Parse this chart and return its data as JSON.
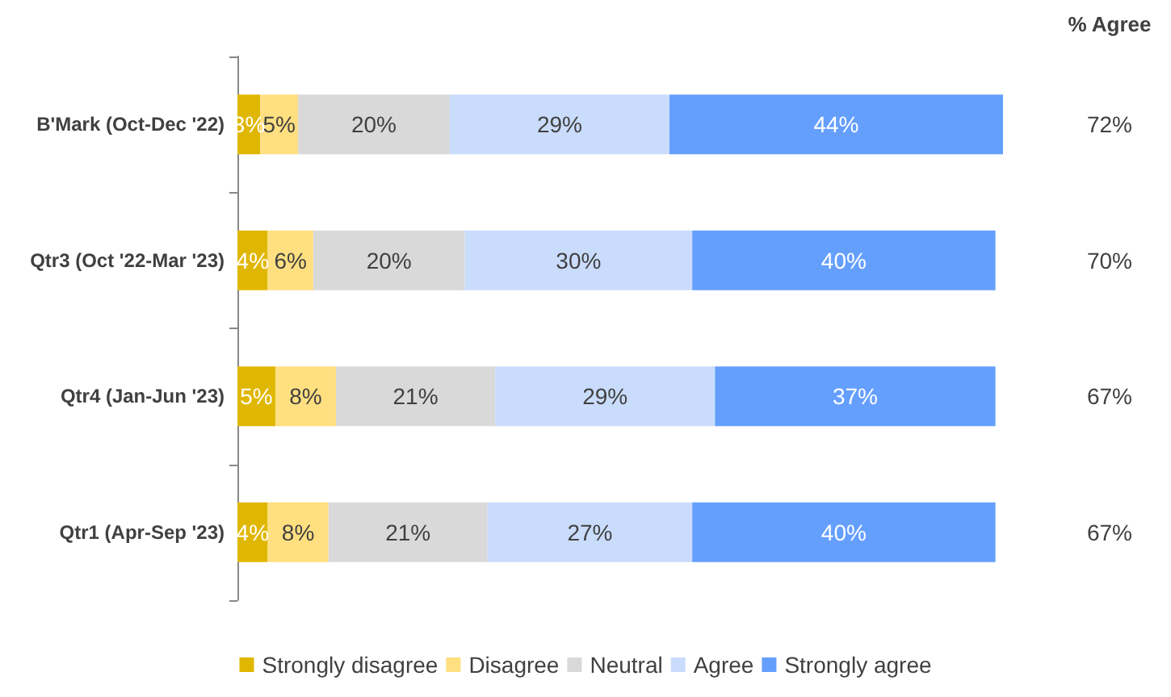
{
  "chart_data": {
    "type": "bar",
    "orientation": "horizontal",
    "stacked": true,
    "legend": "bottom",
    "categories": [
      "B'Mark (Oct-Dec '22)",
      "Qtr3 (Oct '22-Mar '23)",
      "Qtr4 (Jan-Jun '23)",
      "Qtr1 (Apr-Sep '23)"
    ],
    "series": [
      {
        "name": "Strongly disagree",
        "color": "#e0b700",
        "values": [
          3,
          4,
          5,
          4
        ],
        "value_labels": [
          "3%",
          "4%",
          "5%",
          "4%"
        ]
      },
      {
        "name": "Disagree",
        "color": "#ffdf80",
        "values": [
          5,
          6,
          8,
          8
        ],
        "value_labels": [
          "5%",
          "6%",
          "8%",
          "8%"
        ]
      },
      {
        "name": "Neutral",
        "color": "#d9d9d9",
        "values": [
          20,
          20,
          21,
          21
        ],
        "value_labels": [
          "20%",
          "20%",
          "21%",
          "21%"
        ]
      },
      {
        "name": "Agree",
        "color": "#cadcfc",
        "values": [
          29,
          30,
          29,
          27
        ],
        "value_labels": [
          "29%",
          "30%",
          "29%",
          "27%"
        ]
      },
      {
        "name": "Strongly agree",
        "color": "#659ffe",
        "values": [
          44,
          40,
          37,
          40
        ],
        "value_labels": [
          "44%",
          "40%",
          "37%",
          "40%"
        ]
      }
    ],
    "annotations": [
      "% Agree",
      "72%",
      "70%",
      "67%",
      "67%"
    ]
  }
}
